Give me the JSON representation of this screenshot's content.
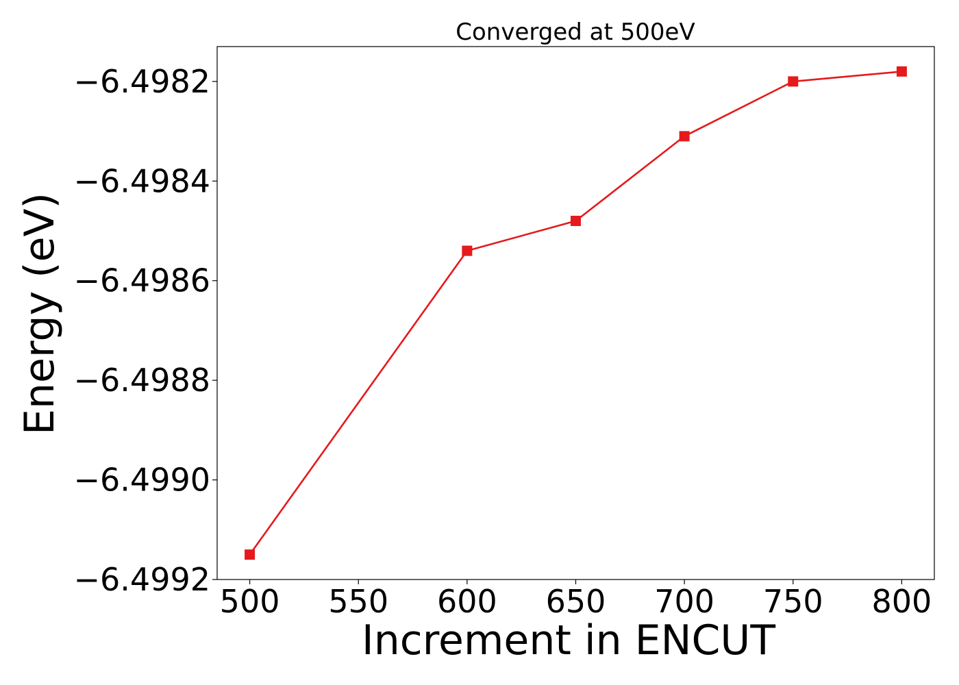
{
  "chart_data": {
    "type": "line",
    "title": "Converged at 500eV",
    "xlabel": "Increment in ENCUT",
    "ylabel": "Energy (eV)",
    "x": [
      500,
      600,
      650,
      700,
      750,
      800
    ],
    "series": [
      {
        "values": [
          -6.49915,
          -6.49854,
          -6.49848,
          -6.49831,
          -6.4982,
          -6.49818
        ],
        "color": "#e41a1c",
        "marker": "square"
      }
    ],
    "xlim": [
      485,
      815
    ],
    "ylim": [
      -6.4992,
      -6.49813
    ],
    "xticks": [
      500,
      550,
      600,
      650,
      700,
      750,
      800
    ],
    "xtick_labels": [
      "500",
      "550",
      "600",
      "650",
      "700",
      "750",
      "800"
    ],
    "yticks": [
      -6.4992,
      -6.499,
      -6.4988,
      -6.4986,
      -6.4984,
      -6.4982
    ],
    "ytick_labels": [
      "−6.4992",
      "−6.4990",
      "−6.4988",
      "−6.4986",
      "−6.4984",
      "−6.4982"
    ],
    "grid": false,
    "legend": "none"
  }
}
